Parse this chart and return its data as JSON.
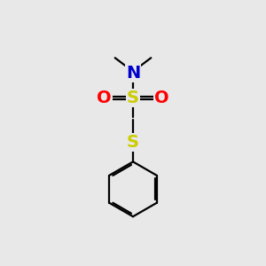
{
  "bg_color": "#e8e8e8",
  "atom_colors": {
    "S": "#cccc00",
    "N": "#0000cc",
    "O": "#ff0000"
  },
  "bond_lw": 1.6,
  "font_size_atom": 14,
  "font_size_small": 11
}
